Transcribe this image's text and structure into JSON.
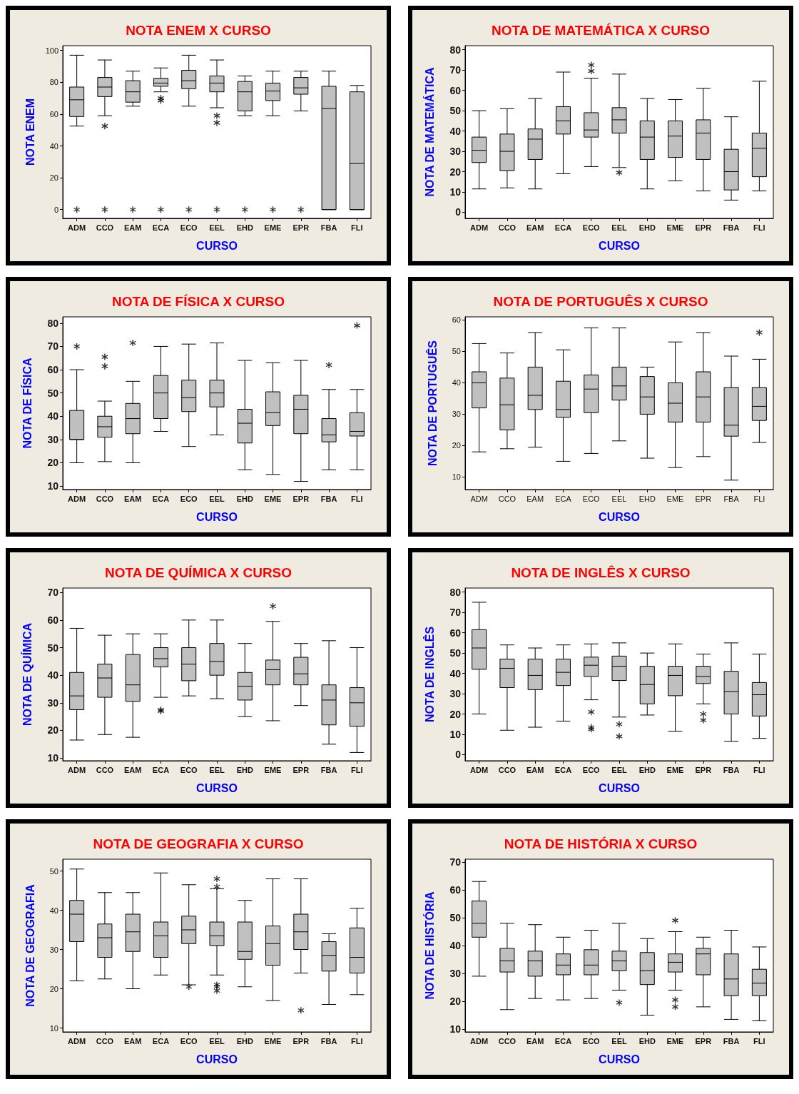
{
  "chart_data": [
    {
      "type": "box",
      "title": "NOTA ENEM X CURSO",
      "xlabel": "CURSO",
      "ylabel": "NOTA ENEM",
      "categories": [
        "ADM",
        "CCO",
        "EAM",
        "ECA",
        "ECO",
        "EEL",
        "EHD",
        "EME",
        "EPR",
        "FBA",
        "FLI"
      ],
      "color": "#c0c0c0",
      "marker": "star",
      "ylim": [
        -5.5,
        103
      ],
      "yticks": [
        0,
        20,
        40,
        60,
        80,
        100
      ],
      "boxes": [
        {
          "low": 52.5,
          "q1": 58.5,
          "median": 69,
          "q3": 77,
          "high": 97,
          "outliers": [
            0
          ]
        },
        {
          "low": 59,
          "q1": 71,
          "median": 77,
          "q3": 83,
          "high": 94,
          "outliers": [
            52.5,
            0
          ]
        },
        {
          "low": 65,
          "q1": 67.5,
          "median": 74,
          "q3": 81,
          "high": 87,
          "outliers": [
            0
          ]
        },
        {
          "low": 74,
          "q1": 77.5,
          "median": 79.5,
          "q3": 82.5,
          "high": 89,
          "outliers": [
            70,
            68.5,
            0
          ]
        },
        {
          "low": 65,
          "q1": 76,
          "median": 81,
          "q3": 87.5,
          "high": 97,
          "outliers": [
            0
          ]
        },
        {
          "low": 64,
          "q1": 74,
          "median": 79.5,
          "q3": 84,
          "high": 94,
          "outliers": [
            59,
            54.5,
            0
          ]
        },
        {
          "low": 59,
          "q1": 62,
          "median": 74,
          "q3": 80.5,
          "high": 84,
          "outliers": [
            0
          ]
        },
        {
          "low": 59,
          "q1": 68.5,
          "median": 74.5,
          "q3": 79.5,
          "high": 87,
          "outliers": [
            0
          ]
        },
        {
          "low": 62,
          "q1": 72.5,
          "median": 76.5,
          "q3": 83,
          "high": 87,
          "outliers": [
            0
          ]
        },
        {
          "low": 0,
          "q1": 0,
          "median": 63.5,
          "q3": 77.5,
          "high": 87
        },
        {
          "low": 0,
          "q1": 0,
          "median": 29,
          "q3": 74,
          "high": 78
        }
      ]
    },
    {
      "type": "box",
      "title": "NOTA DE MATEMÁTICA X CURSO",
      "xlabel": "CURSO",
      "ylabel": "NOTA DE MATEMÁTICA",
      "categories": [
        "ADM",
        "CCO",
        "EAM",
        "ECA",
        "ECO",
        "EEL",
        "EHD",
        "EME",
        "EPR",
        "FBA",
        "FLI"
      ],
      "color": "#c0c0c0",
      "marker": "star",
      "ylim": [
        -3,
        82
      ],
      "yticks": [
        0,
        10,
        20,
        30,
        40,
        50,
        60,
        70,
        80
      ],
      "boxes": [
        {
          "low": 11.5,
          "q1": 24.5,
          "median": 30.5,
          "q3": 37,
          "high": 50
        },
        {
          "low": 12,
          "q1": 20.5,
          "median": 30,
          "q3": 38.5,
          "high": 51
        },
        {
          "low": 11.5,
          "q1": 26,
          "median": 36,
          "q3": 41,
          "high": 56
        },
        {
          "low": 19,
          "q1": 38.5,
          "median": 45,
          "q3": 52,
          "high": 69
        },
        {
          "low": 22.5,
          "q1": 37,
          "median": 40.5,
          "q3": 49,
          "high": 66,
          "outliers": [
            72.5,
            69.5
          ]
        },
        {
          "low": 22,
          "q1": 39,
          "median": 45.5,
          "q3": 51.5,
          "high": 68,
          "outliers": [
            19.5
          ]
        },
        {
          "low": 11.5,
          "q1": 26,
          "median": 37,
          "q3": 45,
          "high": 56
        },
        {
          "low": 15.5,
          "q1": 27,
          "median": 37.5,
          "q3": 45,
          "high": 55.5
        },
        {
          "low": 10.5,
          "q1": 26,
          "median": 39,
          "q3": 45.5,
          "high": 61
        },
        {
          "low": 6,
          "q1": 11,
          "median": 20,
          "q3": 31,
          "high": 47
        },
        {
          "low": 10.5,
          "q1": 17.5,
          "median": 31.5,
          "q3": 39,
          "high": 64.5
        }
      ]
    },
    {
      "type": "box",
      "title": "NOTA DE FÍSICA X CURSO",
      "xlabel": "CURSO",
      "ylabel": "NOTA DE FÍSICA",
      "categories": [
        "ADM",
        "CCO",
        "EAM",
        "ECA",
        "ECO",
        "EEL",
        "EHD",
        "EME",
        "EPR",
        "FBA",
        "FLI"
      ],
      "color": "#c0c0c0",
      "marker": "star",
      "ylim": [
        8.5,
        82.7
      ],
      "yticks": [
        10,
        20,
        30,
        40,
        50,
        60,
        70,
        80
      ],
      "boxes": [
        {
          "low": 20,
          "q1": 30,
          "median": 30,
          "q3": 42.5,
          "high": 60,
          "outliers": [
            70
          ]
        },
        {
          "low": 20.5,
          "q1": 31,
          "median": 35.5,
          "q3": 40,
          "high": 46.5,
          "outliers": [
            65.5,
            61.5
          ]
        },
        {
          "low": 20,
          "q1": 32.5,
          "median": 39,
          "q3": 45.5,
          "high": 55,
          "outliers": [
            71.5
          ]
        },
        {
          "low": 33.5,
          "q1": 39,
          "median": 50,
          "q3": 57.5,
          "high": 70
        },
        {
          "low": 27,
          "q1": 42,
          "median": 48,
          "q3": 55.5,
          "high": 71
        },
        {
          "low": 32,
          "q1": 44,
          "median": 50,
          "q3": 55.5,
          "high": 71.5
        },
        {
          "low": 17,
          "q1": 28.5,
          "median": 37,
          "q3": 43,
          "high": 64
        },
        {
          "low": 15,
          "q1": 36,
          "median": 41.5,
          "q3": 50.5,
          "high": 63
        },
        {
          "low": 12,
          "q1": 32.5,
          "median": 43,
          "q3": 49,
          "high": 64
        },
        {
          "low": 17,
          "q1": 29,
          "median": 32,
          "q3": 39,
          "high": 51.5,
          "outliers": [
            62
          ]
        },
        {
          "low": 17,
          "q1": 31.5,
          "median": 33.5,
          "q3": 41.5,
          "high": 51.5,
          "outliers": [
            79
          ]
        }
      ]
    },
    {
      "type": "box",
      "title": "NOTA DE PORTUGUÊS X CURSO",
      "xlabel": "CURSO",
      "ylabel": "NOTA DE PORTUGUÊS",
      "categories": [
        "ADM",
        "CCO",
        "EAM",
        "ECA",
        "ECO",
        "EEL",
        "EHD",
        "EME",
        "EPR",
        "FBA",
        "FLI"
      ],
      "color": "#c0c0c0",
      "marker": "star",
      "ylim": [
        6,
        61
      ],
      "yticks": [
        10,
        20,
        30,
        40,
        50,
        60
      ],
      "boxes": [
        {
          "low": 18,
          "q1": 32,
          "median": 40,
          "q3": 43.5,
          "high": 52.5
        },
        {
          "low": 19,
          "q1": 25,
          "median": 33,
          "q3": 41.5,
          "high": 49.5
        },
        {
          "low": 19.5,
          "q1": 31.5,
          "median": 36,
          "q3": 45,
          "high": 56
        },
        {
          "low": 15,
          "q1": 29,
          "median": 31.5,
          "q3": 40.5,
          "high": 50.5
        },
        {
          "low": 17.5,
          "q1": 30.5,
          "median": 38,
          "q3": 42.5,
          "high": 57.5
        },
        {
          "low": 21.5,
          "q1": 34.5,
          "median": 39,
          "q3": 45,
          "high": 57.5
        },
        {
          "low": 16,
          "q1": 30,
          "median": 35.5,
          "q3": 42,
          "high": 45
        },
        {
          "low": 13,
          "q1": 27.5,
          "median": 33.5,
          "q3": 40,
          "high": 53
        },
        {
          "low": 16.5,
          "q1": 27.5,
          "median": 35.5,
          "q3": 43.5,
          "high": 56
        },
        {
          "low": 9,
          "q1": 23,
          "median": 26.5,
          "q3": 38.5,
          "high": 48.5
        },
        {
          "low": 21,
          "q1": 28,
          "median": 32.5,
          "q3": 38.5,
          "high": 47.5,
          "outliers": [
            56
          ]
        }
      ]
    },
    {
      "type": "box",
      "title": "NOTA DE QUÍMICA X CURSO",
      "xlabel": "CURSO",
      "ylabel": "NOTA DE QUÍMICA",
      "categories": [
        "ADM",
        "CCO",
        "EAM",
        "ECA",
        "ECO",
        "EEL",
        "EHD",
        "EME",
        "EPR",
        "FBA",
        "FLI"
      ],
      "color": "#c0c0c0",
      "marker": "star",
      "ylim": [
        9,
        71.6
      ],
      "yticks": [
        10,
        20,
        30,
        40,
        50,
        60,
        70
      ],
      "boxes": [
        {
          "low": 16.5,
          "q1": 27.5,
          "median": 32.5,
          "q3": 41,
          "high": 57
        },
        {
          "low": 18.5,
          "q1": 32,
          "median": 39,
          "q3": 44,
          "high": 54.5
        },
        {
          "low": 17.5,
          "q1": 30.5,
          "median": 36.5,
          "q3": 47.5,
          "high": 55
        },
        {
          "low": 32,
          "q1": 43,
          "median": 46,
          "q3": 50,
          "high": 55,
          "outliers": [
            27.5,
            27
          ]
        },
        {
          "low": 32.5,
          "q1": 38,
          "median": 44,
          "q3": 50,
          "high": 60
        },
        {
          "low": 31.5,
          "q1": 40,
          "median": 45,
          "q3": 51.5,
          "high": 60
        },
        {
          "low": 25,
          "q1": 31,
          "median": 36,
          "q3": 41,
          "high": 51.5
        },
        {
          "low": 23.5,
          "q1": 36.5,
          "median": 42,
          "q3": 45.5,
          "high": 59.5,
          "outliers": [
            65
          ]
        },
        {
          "low": 29,
          "q1": 36.5,
          "median": 40.5,
          "q3": 46.5,
          "high": 51.5
        },
        {
          "low": 15,
          "q1": 22,
          "median": 31,
          "q3": 36.5,
          "high": 52.5
        },
        {
          "low": 12,
          "q1": 21.5,
          "median": 30,
          "q3": 35.5,
          "high": 50
        }
      ]
    },
    {
      "type": "box",
      "title": "NOTA DE INGLÊS X CURSO",
      "xlabel": "CURSO",
      "ylabel": "NOTA DE INGLÊS",
      "categories": [
        "ADM",
        "CCO",
        "EAM",
        "ECA",
        "ECO",
        "EEL",
        "EHD",
        "EME",
        "EPR",
        "FBA",
        "FLI"
      ],
      "color": "#c0c0c0",
      "marker": "star",
      "ylim": [
        -3,
        82
      ],
      "yticks": [
        0,
        10,
        20,
        30,
        40,
        50,
        60,
        70,
        80
      ],
      "boxes": [
        {
          "low": 20,
          "q1": 42,
          "median": 52.5,
          "q3": 61.5,
          "high": 75
        },
        {
          "low": 12,
          "q1": 33,
          "median": 42.5,
          "q3": 47,
          "high": 54
        },
        {
          "low": 13.5,
          "q1": 32,
          "median": 39,
          "q3": 47,
          "high": 52.5
        },
        {
          "low": 16.5,
          "q1": 34,
          "median": 40.5,
          "q3": 47,
          "high": 54
        },
        {
          "low": 27,
          "q1": 38.5,
          "median": 44,
          "q3": 48,
          "high": 54.5,
          "outliers": [
            21,
            13.5,
            12.5
          ]
        },
        {
          "low": 18.5,
          "q1": 36.5,
          "median": 43.5,
          "q3": 48.5,
          "high": 55,
          "outliers": [
            15,
            9
          ]
        },
        {
          "low": 19.5,
          "q1": 25,
          "median": 34.5,
          "q3": 43.5,
          "high": 50
        },
        {
          "low": 11.5,
          "q1": 29,
          "median": 39,
          "q3": 43.5,
          "high": 54.5
        },
        {
          "low": 25,
          "q1": 35,
          "median": 38.5,
          "q3": 43.5,
          "high": 49.5,
          "outliers": [
            20,
            17
          ]
        },
        {
          "low": 6.5,
          "q1": 20,
          "median": 31,
          "q3": 41,
          "high": 55
        },
        {
          "low": 8,
          "q1": 19,
          "median": 29.5,
          "q3": 35.5,
          "high": 49.5
        }
      ]
    },
    {
      "type": "box",
      "title": "NOTA DE GEOGRAFIA X CURSO",
      "xlabel": "CURSO",
      "ylabel": "NOTA DE GEOGRAFIA",
      "categories": [
        "ADM",
        "CCO",
        "EAM",
        "ECA",
        "ECO",
        "EEL",
        "EHD",
        "EME",
        "EPR",
        "FBA",
        "FLI"
      ],
      "color": "#c0c0c0",
      "marker": "star",
      "ylim": [
        9,
        53
      ],
      "yticks": [
        10,
        20,
        30,
        40,
        50
      ],
      "boxes": [
        {
          "low": 22,
          "q1": 32,
          "median": 39,
          "q3": 42.5,
          "high": 50.5
        },
        {
          "low": 22.5,
          "q1": 28,
          "median": 33,
          "q3": 36.5,
          "high": 44.5
        },
        {
          "low": 20,
          "q1": 29.5,
          "median": 34.5,
          "q3": 39,
          "high": 44.5
        },
        {
          "low": 23.5,
          "q1": 28,
          "median": 33.5,
          "q3": 37,
          "high": 49.5
        },
        {
          "low": 21,
          "q1": 31.5,
          "median": 35,
          "q3": 38.5,
          "high": 46.5,
          "outliers": [
            20.5
          ]
        },
        {
          "low": 23.5,
          "q1": 31,
          "median": 33.5,
          "q3": 37,
          "high": 45.5,
          "outliers": [
            48,
            46,
            21,
            20.5,
            19.5
          ]
        },
        {
          "low": 20.5,
          "q1": 27.5,
          "median": 29.5,
          "q3": 37,
          "high": 42.5
        },
        {
          "low": 17,
          "q1": 26,
          "median": 31.5,
          "q3": 36,
          "high": 48
        },
        {
          "low": 24,
          "q1": 30,
          "median": 34.5,
          "q3": 39,
          "high": 48,
          "outliers": [
            14.5
          ]
        },
        {
          "low": 16,
          "q1": 24.5,
          "median": 28.5,
          "q3": 32,
          "high": 34
        },
        {
          "low": 18.5,
          "q1": 24,
          "median": 28,
          "q3": 35.5,
          "high": 40.5
        }
      ]
    },
    {
      "type": "box",
      "title": "NOTA DE HISTÓRIA X CURSO",
      "xlabel": "CURSO",
      "ylabel": "NOTA DE HISTÓRIA",
      "categories": [
        "ADM",
        "CCO",
        "EAM",
        "ECA",
        "ECO",
        "EEL",
        "EHD",
        "EME",
        "EPR",
        "FBA",
        "FLI"
      ],
      "color": "#c0c0c0",
      "marker": "star",
      "ylim": [
        9,
        71
      ],
      "yticks": [
        10,
        20,
        30,
        40,
        50,
        60,
        70
      ],
      "boxes": [
        {
          "low": 29,
          "q1": 43,
          "median": 48,
          "q3": 56,
          "high": 63
        },
        {
          "low": 17,
          "q1": 30.5,
          "median": 34.5,
          "q3": 39,
          "high": 48
        },
        {
          "low": 21,
          "q1": 29,
          "median": 34.5,
          "q3": 38,
          "high": 47.5
        },
        {
          "low": 20.5,
          "q1": 29.5,
          "median": 33,
          "q3": 37,
          "high": 43
        },
        {
          "low": 21,
          "q1": 29.5,
          "median": 33,
          "q3": 38.5,
          "high": 45.5
        },
        {
          "low": 24,
          "q1": 31,
          "median": 34.5,
          "q3": 38,
          "high": 48,
          "outliers": [
            19.5
          ]
        },
        {
          "low": 15,
          "q1": 26,
          "median": 31,
          "q3": 37.5,
          "high": 42.5
        },
        {
          "low": 24,
          "q1": 30.5,
          "median": 34,
          "q3": 37,
          "high": 45,
          "outliers": [
            49,
            20.5,
            18
          ]
        },
        {
          "low": 18,
          "q1": 29.5,
          "median": 37,
          "q3": 39,
          "high": 43
        },
        {
          "low": 13.5,
          "q1": 22,
          "median": 28,
          "q3": 37,
          "high": 45.5
        },
        {
          "low": 13,
          "q1": 22,
          "median": 26.5,
          "q3": 31.5,
          "high": 39.5
        }
      ]
    }
  ]
}
